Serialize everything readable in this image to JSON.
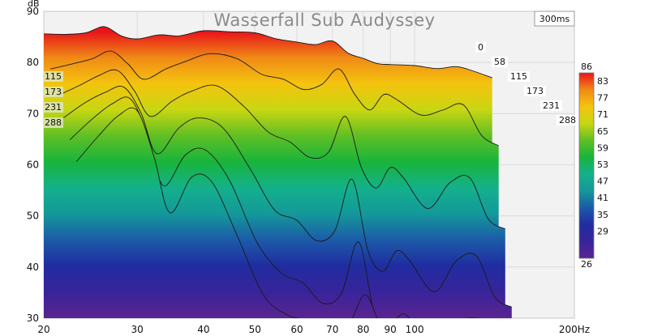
{
  "chart_data": {
    "type": "area",
    "subtype": "waterfall / cumulative spectral decay",
    "title": "Wasserfall Sub Audyssey",
    "time_window_label": "300ms",
    "xscale": "log",
    "xlim": [
      20,
      200
    ],
    "xticks": [
      "20",
      "30",
      "40",
      "50",
      "60",
      "70",
      "80",
      "90",
      "100",
      "200Hz"
    ],
    "xtick_values": [
      20,
      30,
      40,
      50,
      60,
      70,
      80,
      90,
      100,
      200
    ],
    "ylabel": "dB",
    "ylim": [
      30,
      90
    ],
    "yticks": [
      "30",
      "40",
      "50",
      "60",
      "70",
      "80",
      "90"
    ],
    "ytick_values": [
      30,
      40,
      50,
      60,
      70,
      80,
      90
    ],
    "time_slices_ms": [
      "0",
      "58",
      "115",
      "173",
      "231",
      "288"
    ],
    "left_time_labels": [
      "115",
      "173",
      "231",
      "288"
    ],
    "colorbar": {
      "labels": [
        "86",
        "83",
        "77",
        "71",
        "65",
        "59",
        "53",
        "47",
        "41",
        "35",
        "29",
        "26"
      ],
      "colors": [
        "#e8141a",
        "#f08a16",
        "#f4c40e",
        "#c8d612",
        "#5fbf24",
        "#18b43c",
        "#14b08c",
        "#14989a",
        "#1c5aa8",
        "#202ca0",
        "#38249a",
        "#5a2490"
      ]
    },
    "series": [
      {
        "time_ms": 0,
        "freq_hz": [
          20,
          22,
          24,
          26,
          28,
          30,
          33,
          36,
          40,
          45,
          50,
          55,
          60,
          65,
          70,
          75,
          80,
          85,
          90,
          100,
          110,
          120,
          130,
          140
        ],
        "db": [
          85.6,
          85.5,
          85.8,
          87.0,
          85.2,
          84.6,
          85.4,
          85.2,
          86.2,
          86.0,
          85.8,
          84.6,
          84.0,
          83.5,
          84.2,
          81.8,
          80.8,
          79.8,
          79.6,
          79.4,
          78.8,
          79.2,
          78.2,
          77.0
        ]
      },
      {
        "time_ms": 58,
        "freq_hz": [
          20,
          22,
          24,
          26,
          28,
          30,
          33,
          36,
          40,
          45,
          50,
          55,
          60,
          65,
          70,
          75,
          80,
          85,
          90,
          100,
          110,
          120,
          130,
          140
        ],
        "db": [
          79.0,
          80.0,
          81.0,
          82.5,
          80.0,
          77.0,
          79.0,
          80.5,
          82.0,
          81.0,
          78.0,
          77.0,
          75.0,
          76.0,
          79.0,
          74.0,
          71.0,
          74.0,
          73.0,
          70.0,
          71.0,
          72.0,
          66.0,
          64.0
        ]
      },
      {
        "time_ms": 115,
        "freq_hz": [
          20,
          22,
          24,
          26,
          28,
          30,
          33,
          36,
          40,
          45,
          50,
          55,
          60,
          65,
          70,
          75,
          80,
          85,
          90,
          100,
          110,
          120,
          130,
          140
        ],
        "db": [
          74.0,
          76.0,
          78.0,
          79.0,
          75.0,
          70.0,
          73.0,
          75.0,
          76.0,
          72.0,
          67.0,
          65.0,
          62.0,
          63.0,
          70.0,
          60.0,
          56.0,
          60.0,
          58.0,
          52.0,
          57.0,
          58.0,
          50.0,
          48.0
        ]
      },
      {
        "time_ms": 173,
        "freq_hz": [
          20,
          22,
          24,
          26,
          28,
          30,
          33,
          36,
          40,
          45,
          50,
          55,
          60,
          65,
          70,
          75,
          80,
          85,
          90,
          100,
          110,
          120,
          130,
          140
        ],
        "db": [
          70.0,
          73.0,
          75.0,
          76.0,
          71.0,
          63.0,
          68.0,
          70.0,
          68.0,
          60.0,
          52.0,
          50.0,
          46.0,
          48.0,
          58.0,
          44.0,
          40.0,
          44.0,
          42.0,
          36.0,
          42.0,
          43.0,
          35.0,
          33.0
        ]
      },
      {
        "time_ms": 231,
        "freq_hz": [
          20,
          22,
          24,
          26,
          28,
          30,
          33,
          36,
          40,
          45,
          50,
          55,
          60,
          65,
          70,
          75,
          80,
          85,
          90,
          100,
          110,
          120,
          130,
          140
        ],
        "db": [
          66.0,
          70.0,
          73.0,
          74.0,
          67.0,
          57.0,
          63.0,
          64.0,
          58.0,
          46.0,
          40.0,
          38.0,
          34.0,
          36.0,
          46.0,
          32.0,
          30.0,
          32.0,
          30.0,
          30.0,
          31.0,
          31.0,
          30.0,
          30.0
        ]
      },
      {
        "time_ms": 288,
        "freq_hz": [
          20,
          22,
          24,
          26,
          28,
          30,
          33,
          36,
          40,
          45,
          50,
          55,
          60,
          65,
          70,
          75,
          80,
          85,
          90,
          100,
          110,
          120,
          130,
          140
        ],
        "db": [
          62.0,
          67.0,
          71.0,
          72.0,
          63.0,
          52.0,
          59.0,
          58.0,
          48.0,
          36.0,
          32.0,
          31.0,
          30.0,
          30.0,
          36.0,
          30.0,
          30.0,
          30.0,
          30.0,
          30.0,
          30.0,
          30.0,
          30.0,
          30.0
        ]
      }
    ]
  }
}
